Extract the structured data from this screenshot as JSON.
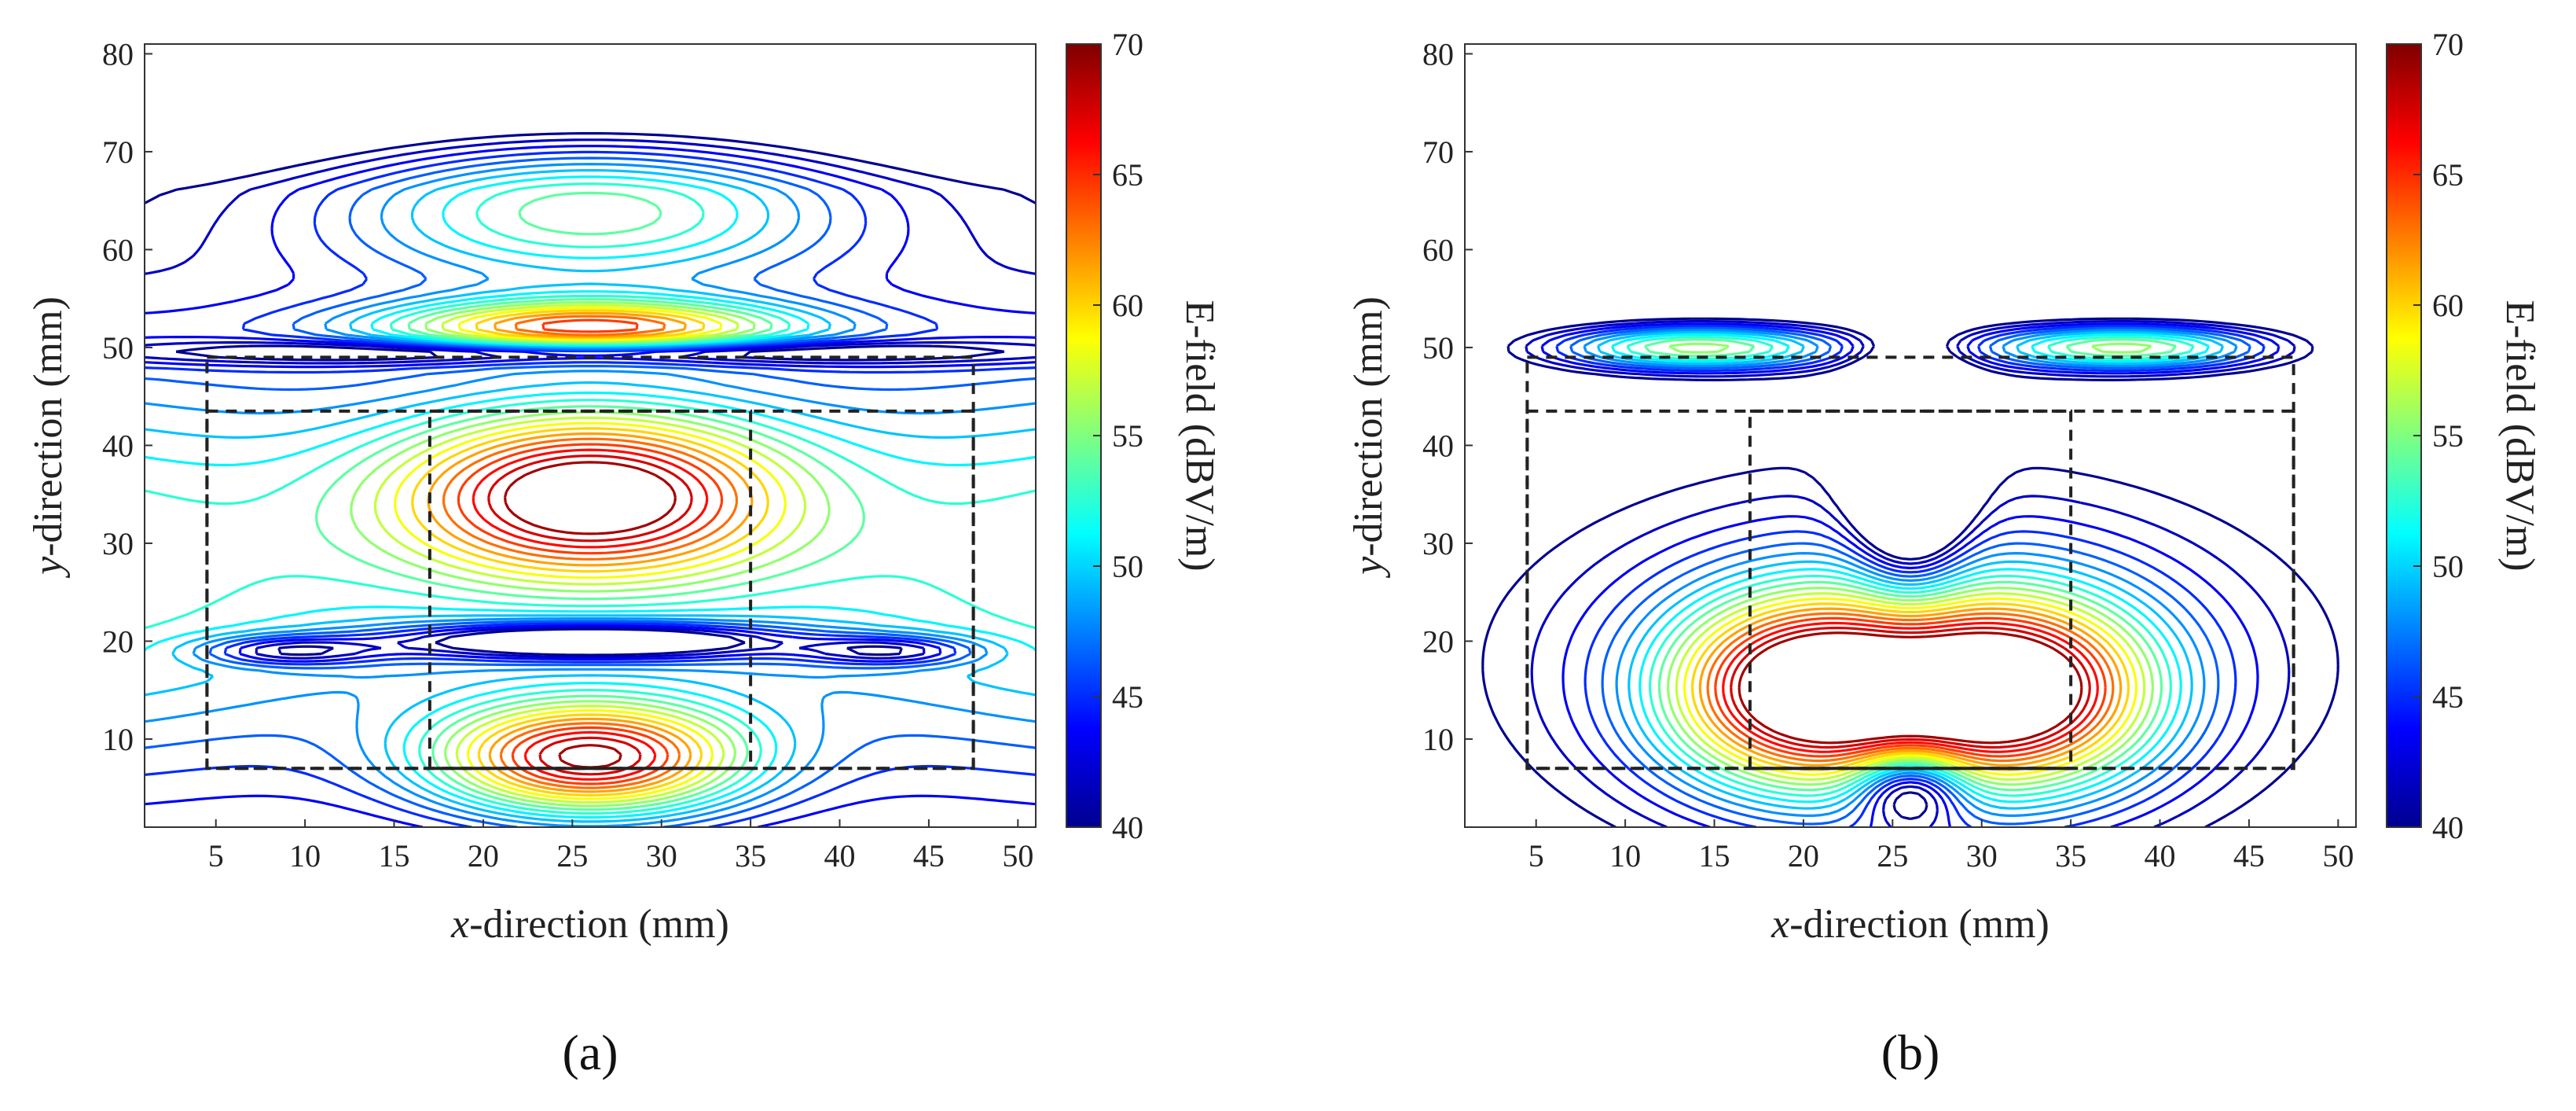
{
  "chart_data": [
    {
      "type": "contour",
      "panel_label": "(a)",
      "xlabel_italic": "x",
      "xlabel_rest": "-direction (mm)",
      "ylabel_italic": "y",
      "ylabel_rest": "-direction (mm)",
      "xlim": [
        1,
        51
      ],
      "ylim": [
        1,
        81
      ],
      "xticks": [
        5,
        10,
        15,
        20,
        25,
        30,
        35,
        40,
        45,
        50
      ],
      "yticks": [
        10,
        20,
        30,
        40,
        50,
        60,
        70,
        80
      ],
      "colorbar": {
        "label": "E-field (dBV/m)",
        "min": 40,
        "max": 70,
        "ticks": [
          40,
          45,
          50,
          55,
          60,
          65,
          70
        ]
      },
      "dashed_regions_mm": [
        {
          "x": [
            4.5,
            47.5
          ],
          "y": [
            7,
            49
          ]
        },
        {
          "x": [
            4.5,
            47.5
          ],
          "y": [
            7,
            43.5
          ]
        },
        {
          "x": [
            17,
            35
          ],
          "y": [
            7,
            43.5
          ]
        }
      ],
      "field_model": "a"
    },
    {
      "type": "contour",
      "panel_label": "(b)",
      "xlabel_italic": "x",
      "xlabel_rest": "-direction (mm)",
      "ylabel_italic": "y",
      "ylabel_rest": "-direction (mm)",
      "xlim": [
        1,
        51
      ],
      "ylim": [
        1,
        81
      ],
      "xticks": [
        5,
        10,
        15,
        20,
        25,
        30,
        35,
        40,
        45,
        50
      ],
      "yticks": [
        10,
        20,
        30,
        40,
        50,
        60,
        70,
        80
      ],
      "colorbar": {
        "label": "E-field (dBV/m)",
        "min": 40,
        "max": 70,
        "ticks": [
          40,
          45,
          50,
          55,
          60,
          65,
          70
        ]
      },
      "dashed_regions_mm": [
        {
          "x": [
            4.5,
            47.5
          ],
          "y": [
            7,
            49
          ]
        },
        {
          "x": [
            4.5,
            47.5
          ],
          "y": [
            7,
            43.5
          ]
        },
        {
          "x": [
            17,
            35
          ],
          "y": [
            7,
            43.5
          ]
        }
      ],
      "field_model": "b"
    }
  ]
}
